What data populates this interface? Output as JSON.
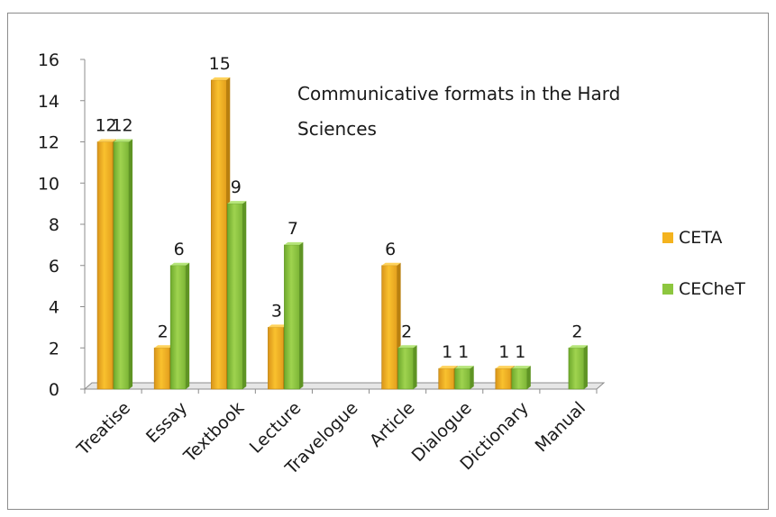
{
  "chart_data": {
    "type": "bar",
    "title": "Communicative formats in the Hard Sciences",
    "xlabel": "",
    "ylabel": "",
    "ylim": [
      0,
      16
    ],
    "yticks": [
      0,
      2,
      4,
      6,
      8,
      10,
      12,
      14,
      16
    ],
    "grid": false,
    "legend_position": "right",
    "categories": [
      "Treatise",
      "Essay",
      "Textbook",
      "Lecture",
      "Travelogue",
      "Article",
      "Dialogue",
      "Dictionary",
      "Manual"
    ],
    "series": [
      {
        "name": "CETA",
        "color": "#f4b31e",
        "values": [
          12,
          2,
          15,
          3,
          0,
          6,
          1,
          1,
          0
        ],
        "labels": [
          "12",
          "2",
          "15",
          "3",
          "",
          "6",
          "1",
          "1",
          ""
        ]
      },
      {
        "name": "CEChеT",
        "color": "#8dc63f",
        "values": [
          12,
          6,
          9,
          7,
          0,
          2,
          1,
          1,
          2
        ],
        "labels": [
          "12",
          "6",
          "9",
          "7",
          "",
          "2",
          "1",
          "1",
          "2"
        ]
      }
    ]
  }
}
